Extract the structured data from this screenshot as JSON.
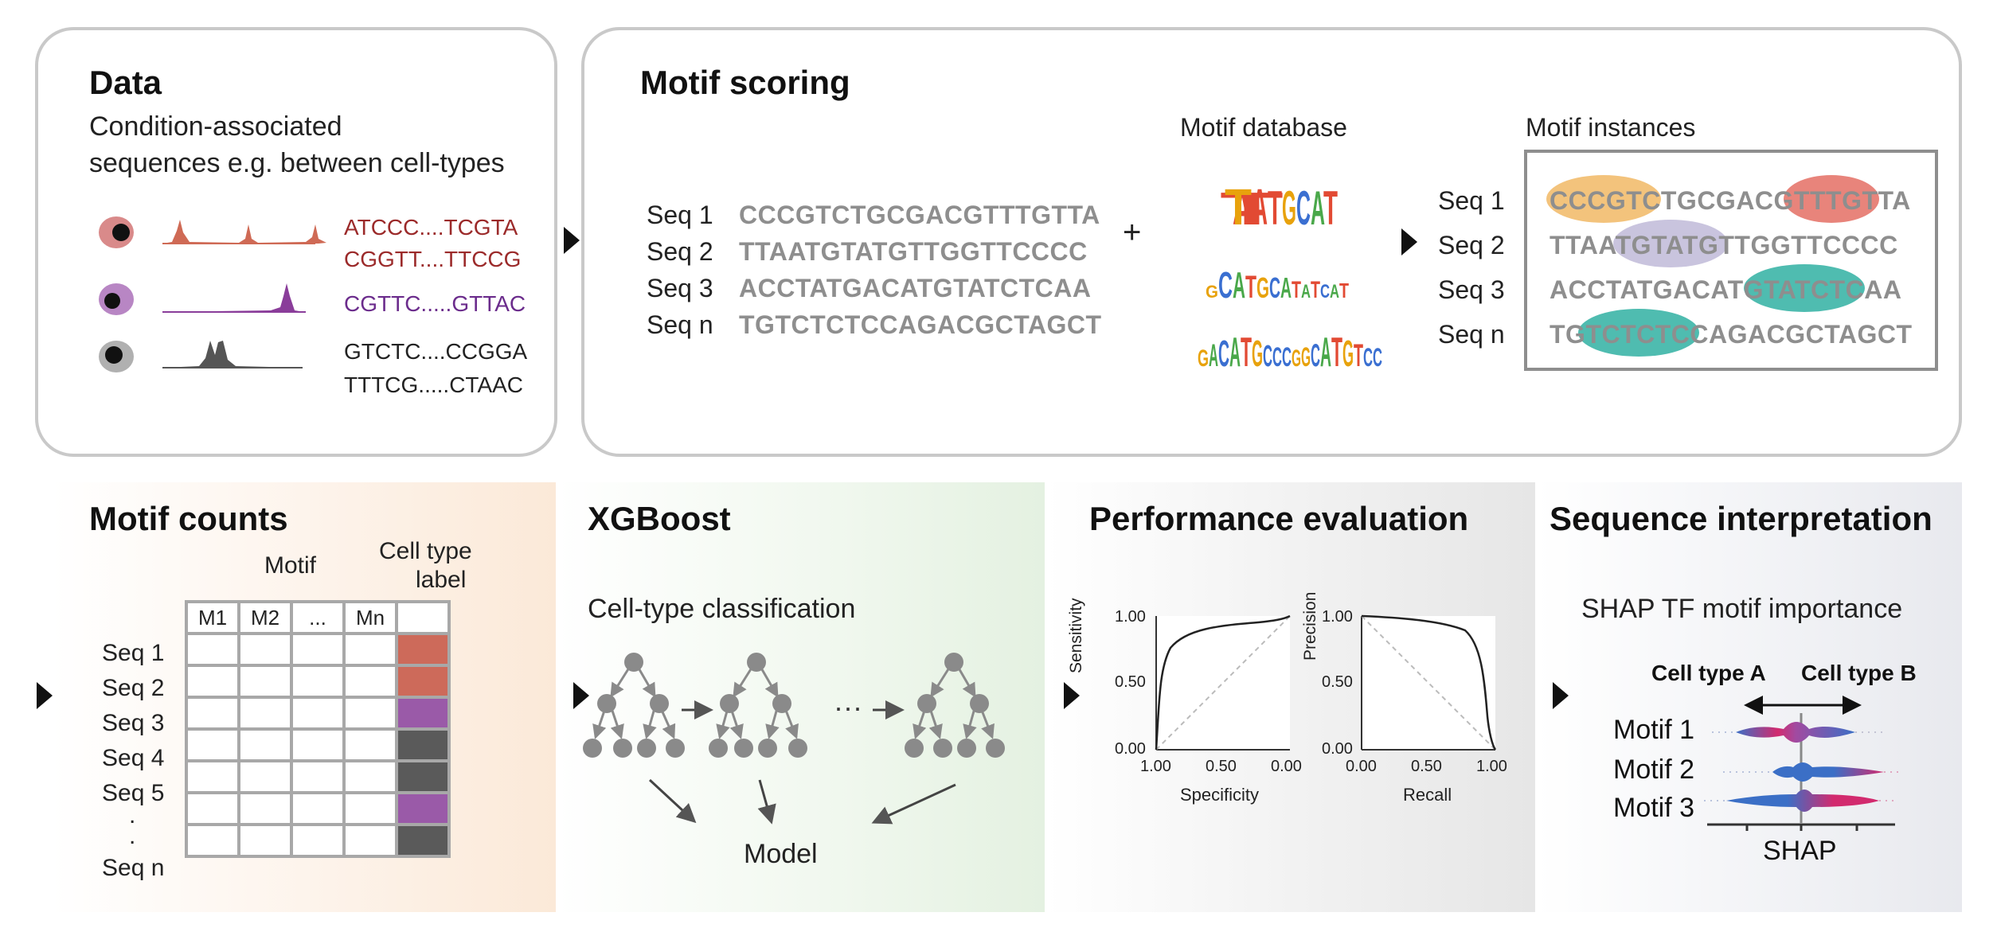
{
  "data_panel": {
    "title": "Data",
    "subtitle_line1": "Condition-associated",
    "subtitle_line2": "sequences e.g. between cell-types",
    "rows": [
      {
        "seq_a": "ATCCC....TCGTA",
        "seq_b": "CGGTT....TTCCG",
        "color": "#9b2a2a",
        "cell_color": "#d98a8a",
        "peak_color": "#cf6a55"
      },
      {
        "seq_a": "CGTTC.....GTTAC",
        "seq_b": "",
        "color": "#6b2c8c",
        "cell_color": "#b886c4",
        "peak_color": "#8a3d9a"
      },
      {
        "seq_a": "GTCTC....CCGGA",
        "seq_b": "TTTCG.....CTAAC",
        "color": "#222222",
        "cell_color": "#b0b0b0",
        "peak_color": "#555555"
      }
    ]
  },
  "motif_scoring": {
    "title": "Motif scoring",
    "sequences": [
      {
        "label": "Seq 1",
        "seq": "CCCGTCTGCGACGTTTGTTA"
      },
      {
        "label": "Seq 2",
        "seq": "TTAATGTATGTTGGTTCCCC"
      },
      {
        "label": "Seq 3",
        "seq": "ACCTATGACATGTATCTCAA"
      },
      {
        "label": "Seq n",
        "seq": "TGTCTCTCCAGACGCTAGCT"
      }
    ],
    "plus": "+",
    "database_label": "Motif database",
    "logos": [
      {
        "text": "TATGCAT",
        "letters_small": "ATC"
      },
      {
        "text": "CATGCATATCAT",
        "letters_small": ""
      },
      {
        "text": "GACATGCCCGGCATGTCC",
        "letters_small": ""
      }
    ],
    "instances_label": "Motif instances",
    "instances": [
      {
        "label": "Seq 1",
        "seq": "CCCGTCTGCGACGTTTGTTA"
      },
      {
        "label": "Seq 2",
        "seq": "TTAATGTATGTTGGTTCCCC"
      },
      {
        "label": "Seq 3",
        "seq": "ACCTATGACATGTATCTCAA"
      },
      {
        "label": "Seq n",
        "seq": "TGTCTCTCCAGACGCTAGCT"
      }
    ],
    "highlight_colors": {
      "orange": "#f3c37c",
      "red": "#e8847b",
      "purple": "#c9c4de",
      "teal": "#4fbcb0"
    }
  },
  "motif_counts": {
    "title": "Motif counts",
    "motif_header": "Motif",
    "label_header_line1": "Cell type",
    "label_header_line2": "label",
    "columns": [
      "M1",
      "M2",
      "...",
      "Mn"
    ],
    "rows": [
      "Seq 1",
      "Seq 2",
      "Seq 3",
      "Seq 4",
      "Seq 5",
      ".",
      ".",
      "Seq n"
    ],
    "label_colors": [
      "#cd6a5a",
      "#cd6a5a",
      "#9a5aa8",
      "#5a5a5a",
      "#5a5a5a",
      "#9a5aa8",
      "#5a5a5a"
    ]
  },
  "xgboost": {
    "title": "XGBoost",
    "subtitle": "Cell-type classification",
    "ellipsis": "...",
    "model_label": "Model"
  },
  "performance": {
    "title": "Performance evaluation",
    "roc": {
      "ylabel": "Sensitivity",
      "xlabel": "Specificity",
      "yticks": [
        "1.00",
        "0.50",
        "0.00"
      ],
      "xticks": [
        "1.00",
        "0.50",
        "0.00"
      ]
    },
    "pr": {
      "ylabel": "Precision",
      "xlabel": "Recall",
      "yticks": [
        "1.00",
        "0.50",
        "0.00"
      ],
      "xticks": [
        "0.00",
        "0.50",
        "1.00"
      ]
    }
  },
  "interpretation": {
    "title": "Sequence interpretation",
    "subtitle": "SHAP TF motif importance",
    "cell_a": "Cell type A",
    "cell_b": "Cell type B",
    "motifs": [
      "Motif 1",
      "Motif 2",
      "Motif 3"
    ],
    "xlabel": "SHAP"
  }
}
